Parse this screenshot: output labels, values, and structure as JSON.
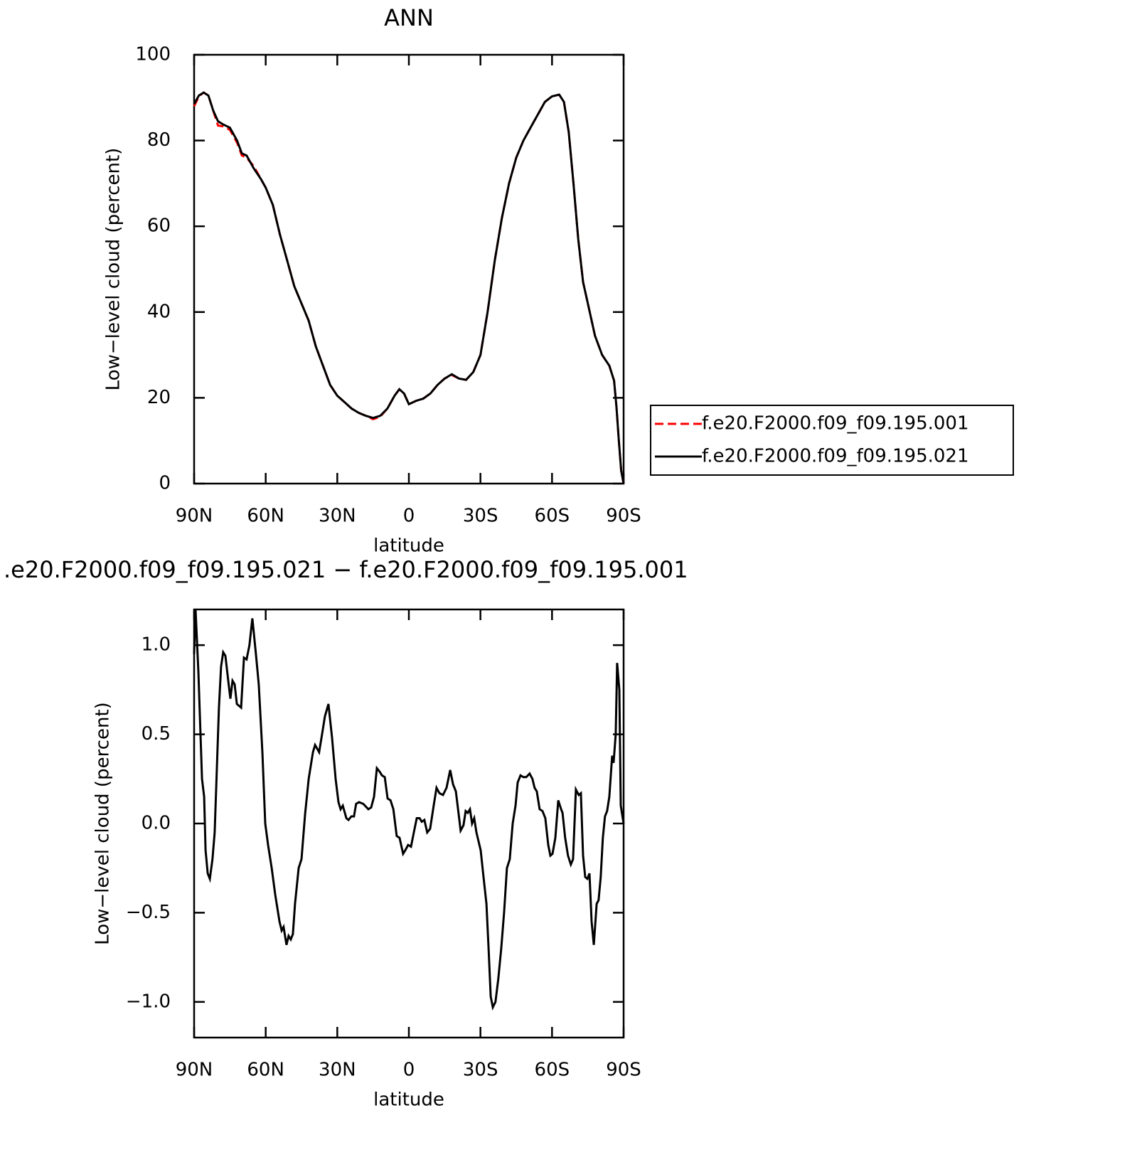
{
  "chart_data": [
    {
      "type": "line",
      "title": "ANN",
      "xlabel": "latitude",
      "ylabel": "Low−level cloud (percent)",
      "xlim": [
        90,
        -90
      ],
      "xticks": [
        {
          "value": 90,
          "label": "90N"
        },
        {
          "value": 60,
          "label": "60N"
        },
        {
          "value": 30,
          "label": "30N"
        },
        0,
        {
          "value": -30,
          "label": "30S"
        },
        {
          "value": -60,
          "label": "60S"
        },
        {
          "value": -90,
          "label": "90S"
        }
      ],
      "ylim": [
        0,
        100
      ],
      "yticks": [
        0,
        20,
        40,
        60,
        80,
        100
      ],
      "legend": "right",
      "x": [
        90,
        88,
        86,
        84,
        82,
        80,
        78,
        75,
        72,
        70,
        68,
        65,
        62,
        60,
        57,
        54,
        51,
        48,
        45,
        42,
        39,
        36,
        33,
        30,
        27,
        24,
        21,
        18,
        15,
        12,
        9,
        6,
        4,
        2,
        0,
        -3,
        -6,
        -9,
        -12,
        -15,
        -18,
        -21,
        -24,
        -27,
        -30,
        -33,
        -36,
        -39,
        -42,
        -45,
        -48,
        -51,
        -54,
        -57,
        -60,
        -63,
        -65,
        -67,
        -69,
        -71,
        -73,
        -75,
        -78,
        -81,
        -84,
        -86,
        -87,
        -88,
        -89,
        -90
      ],
      "series": [
        {
          "name": "f.e20.F2000.f09_f09.195.001",
          "color": "#ff0000",
          "dash": "dashed",
          "values": [
            88,
            90.3,
            91.2,
            90.5,
            87,
            83.5,
            83.3,
            82.5,
            79.5,
            76.5,
            76,
            74,
            71,
            69,
            65,
            58,
            52,
            46,
            42,
            38,
            32,
            27.5,
            23,
            20.5,
            19,
            17.5,
            16.5,
            15.8,
            15,
            15.6,
            17.5,
            20.5,
            22,
            21,
            18.5,
            19.3,
            19.8,
            21,
            23,
            24.5,
            25.3,
            24.5,
            24.2,
            26,
            30,
            40,
            52,
            62,
            70,
            76,
            80,
            83,
            86,
            89,
            90.3,
            90.7,
            89,
            82,
            70,
            57,
            47,
            42,
            34.5,
            30,
            27.5,
            24,
            18,
            10,
            3,
            0
          ]
        },
        {
          "name": "f.e20.F2000.f09_f09.195.021",
          "color": "#000000",
          "dash": "solid",
          "values": [
            88.5,
            90.5,
            91.2,
            90.5,
            87,
            84.5,
            83.8,
            83,
            80,
            77,
            76.5,
            73.5,
            71,
            69,
            65,
            58,
            52,
            46,
            42,
            38,
            32,
            27.5,
            23,
            20.5,
            19,
            17.5,
            16.5,
            15.8,
            15.3,
            15.8,
            17.5,
            20.5,
            22,
            21,
            18.5,
            19.3,
            19.8,
            21,
            23,
            24.5,
            25.5,
            24.5,
            24.2,
            26,
            30,
            40,
            52,
            62,
            70,
            76,
            80,
            83,
            86,
            89,
            90.3,
            90.7,
            89,
            82,
            70,
            57,
            47,
            42,
            34.5,
            30,
            27.5,
            24,
            18,
            10,
            3,
            0
          ]
        }
      ]
    },
    {
      "type": "line",
      "title": ".e20.F2000.f09_f09.195.021 − f.e20.F2000.f09_f09.195.001",
      "xlabel": "latitude",
      "ylabel": "Low−level cloud (percent)",
      "xlim": [
        90,
        -90
      ],
      "xticks": [
        {
          "value": 90,
          "label": "90N"
        },
        {
          "value": 60,
          "label": "60N"
        },
        {
          "value": 30,
          "label": "30N"
        },
        0,
        {
          "value": -30,
          "label": "30S"
        },
        {
          "value": -60,
          "label": "60S"
        },
        {
          "value": -90,
          "label": "90S"
        }
      ],
      "ylim": [
        -1.2,
        1.2
      ],
      "yticks": [
        {
          "value": -1,
          "label": "−1.0"
        },
        {
          "value": -0.5,
          "label": "−0.5"
        },
        {
          "value": 0,
          "label": "0.0"
        },
        {
          "value": 0.5,
          "label": "0.5"
        },
        {
          "value": 1,
          "label": "1.0"
        }
      ],
      "x": [
        90,
        89.4,
        88.2,
        86.7,
        85.8,
        85.2,
        84.3,
        83.4,
        82.3,
        81.4,
        80.5,
        79.6,
        78.7,
        77.8,
        76.9,
        75.7,
        74.8,
        73.9,
        73.0,
        72.1,
        70.3,
        69.1,
        68.0,
        66.8,
        65.6,
        64.1,
        62.9,
        61.4,
        60.2,
        59.0,
        57.5,
        56.0,
        54.2,
        53.3,
        52.5,
        51.3,
        50.4,
        49.5,
        48.6,
        47.7,
        46.2,
        45.0,
        43.5,
        42.0,
        40.2,
        39.3,
        37.6,
        36.4,
        35.2,
        33.7,
        32.2,
        30.7,
        29.5,
        28.6,
        27.7,
        26.2,
        25.3,
        24.1,
        23.0,
        22.1,
        20.9,
        19.1,
        17.0,
        15.8,
        14.6,
        13.4,
        12.2,
        11.3,
        10.1,
        8.9,
        7.7,
        6.5,
        5.1,
        3.9,
        2.4,
        1.5,
        0.3,
        -0.9,
        -2.1,
        -3.3,
        -4.5,
        -5.4,
        -6.5,
        -7.7,
        -8.9,
        -10.4,
        -11.6,
        -12.8,
        -14.3,
        -15.8,
        -17.3,
        -18.5,
        -19.7,
        -20.9,
        -21.7,
        -22.9,
        -23.8,
        -24.7,
        -25.6,
        -26.5,
        -27.4,
        -28.3,
        -30.1,
        -31.3,
        -32.5,
        -33.4,
        -34.3,
        -35.2,
        -36.3,
        -37.5,
        -38.7,
        -39.9,
        -41.1,
        -42.3,
        -43.5,
        -44.7,
        -45.6,
        -46.8,
        -48.0,
        -49.2,
        -50.6,
        -51.8,
        -52.7,
        -53.6,
        -54.8,
        -56.0,
        -57.2,
        -58.4,
        -59.3,
        -60.2,
        -61.4,
        -62.6,
        -63.8,
        -64.4,
        -65.5,
        -66.7,
        -67.9,
        -68.8,
        -70.0,
        -71.2,
        -72.1,
        -73.0,
        -73.9,
        -74.8,
        -75.7,
        -76.6,
        -77.5,
        -78.7,
        -79.5,
        -80.4,
        -81.3,
        -82.2,
        -83.1,
        -84.0,
        -85.2,
        -85.8,
        -86.7,
        -87.3,
        -88.2,
        -88.8,
        -90
      ],
      "series": [
        {
          "color": "#000000",
          "dash": "solid",
          "values": [
            0.95,
            1.2,
            0.85,
            0.25,
            0.15,
            -0.15,
            -0.28,
            -0.31,
            -0.2,
            -0.05,
            0.3,
            0.65,
            0.88,
            0.96,
            0.94,
            0.8,
            0.7,
            0.8,
            0.78,
            0.67,
            0.65,
            0.93,
            0.92,
            1.0,
            1.15,
            0.95,
            0.78,
            0.4,
            0.0,
            -0.12,
            -0.25,
            -0.4,
            -0.55,
            -0.6,
            -0.58,
            -0.68,
            -0.63,
            -0.65,
            -0.62,
            -0.45,
            -0.25,
            -0.2,
            0.05,
            0.25,
            0.4,
            0.44,
            0.4,
            0.5,
            0.6,
            0.67,
            0.48,
            0.25,
            0.12,
            0.08,
            0.1,
            0.03,
            0.02,
            0.04,
            0.04,
            0.11,
            0.12,
            0.11,
            0.08,
            0.09,
            0.15,
            0.31,
            0.29,
            0.27,
            0.26,
            0.14,
            0.13,
            0.08,
            -0.07,
            -0.08,
            -0.17,
            -0.15,
            -0.12,
            -0.13,
            -0.05,
            0.03,
            0.03,
            0.01,
            0.02,
            -0.05,
            -0.03,
            0.1,
            0.2,
            0.17,
            0.16,
            0.2,
            0.3,
            0.22,
            0.18,
            0.05,
            -0.04,
            -0.01,
            0.07,
            0.06,
            0.08,
            0.0,
            0.03,
            -0.05,
            -0.15,
            -0.3,
            -0.45,
            -0.7,
            -0.97,
            -1.03,
            -1.0,
            -0.87,
            -0.7,
            -0.5,
            -0.25,
            -0.2,
            0.0,
            0.1,
            0.23,
            0.27,
            0.26,
            0.26,
            0.28,
            0.25,
            0.2,
            0.18,
            0.08,
            0.07,
            0.03,
            -0.12,
            -0.18,
            -0.17,
            -0.08,
            0.13,
            0.08,
            0.06,
            -0.08,
            -0.18,
            -0.23,
            -0.2,
            0.19,
            0.16,
            0.17,
            -0.18,
            -0.3,
            -0.31,
            -0.28,
            -0.55,
            -0.68,
            -0.45,
            -0.43,
            -0.3,
            -0.08,
            0.04,
            0.07,
            0.15,
            0.38,
            0.34,
            0.5,
            0.9,
            0.75,
            0.1,
            0.0
          ]
        }
      ]
    }
  ]
}
